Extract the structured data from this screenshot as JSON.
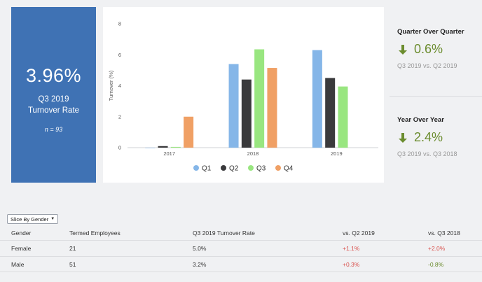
{
  "kpi": {
    "value": "3.96%",
    "label_line1": "Q3 2019",
    "label_line2": "Turnover Rate",
    "n_text": "n = 93"
  },
  "chart_data": {
    "type": "bar",
    "categories": [
      "2017",
      "2018",
      "2019"
    ],
    "series": [
      {
        "name": "Q1",
        "color": "#85b6e8",
        "values": [
          0,
          5.4,
          6.3
        ]
      },
      {
        "name": "Q2",
        "color": "#3a3a3c",
        "values": [
          0.1,
          4.4,
          4.5
        ]
      },
      {
        "name": "Q3",
        "color": "#99e680",
        "values": [
          0.05,
          6.35,
          3.95
        ]
      },
      {
        "name": "Q4",
        "color": "#f0a065",
        "values": [
          2.0,
          5.15,
          null
        ]
      }
    ],
    "yticks": [
      "0",
      "2",
      "4",
      "6",
      "8"
    ],
    "ylabel": "Turnover (%)",
    "ylim": [
      0,
      8
    ],
    "legend_position": "bottom",
    "grid": false
  },
  "qoq": {
    "title": "Quarter Over Quarter",
    "value": "0.6%",
    "sub": "Q3 2019 vs. Q2 2019",
    "arrow": "arrow-down-icon",
    "color": "#6b8c2e"
  },
  "yoy": {
    "title": "Year Over Year",
    "value": "2.4%",
    "sub": "Q3 2019 vs. Q3 2018",
    "arrow": "arrow-down-icon",
    "color": "#6b8c2e"
  },
  "slice": {
    "label": "Slice By Gender"
  },
  "table": {
    "headers": [
      "Gender",
      "Termed Employees",
      "Q3 2019 Turnover Rate",
      "vs. Q2 2019",
      "vs. Q3 2018"
    ],
    "rows": [
      [
        "Female",
        "21",
        "5.0%",
        "+1.1%",
        "+2.0%"
      ],
      [
        "Male",
        "51",
        "3.2%",
        "+0.3%",
        "-0.8%"
      ]
    ]
  }
}
